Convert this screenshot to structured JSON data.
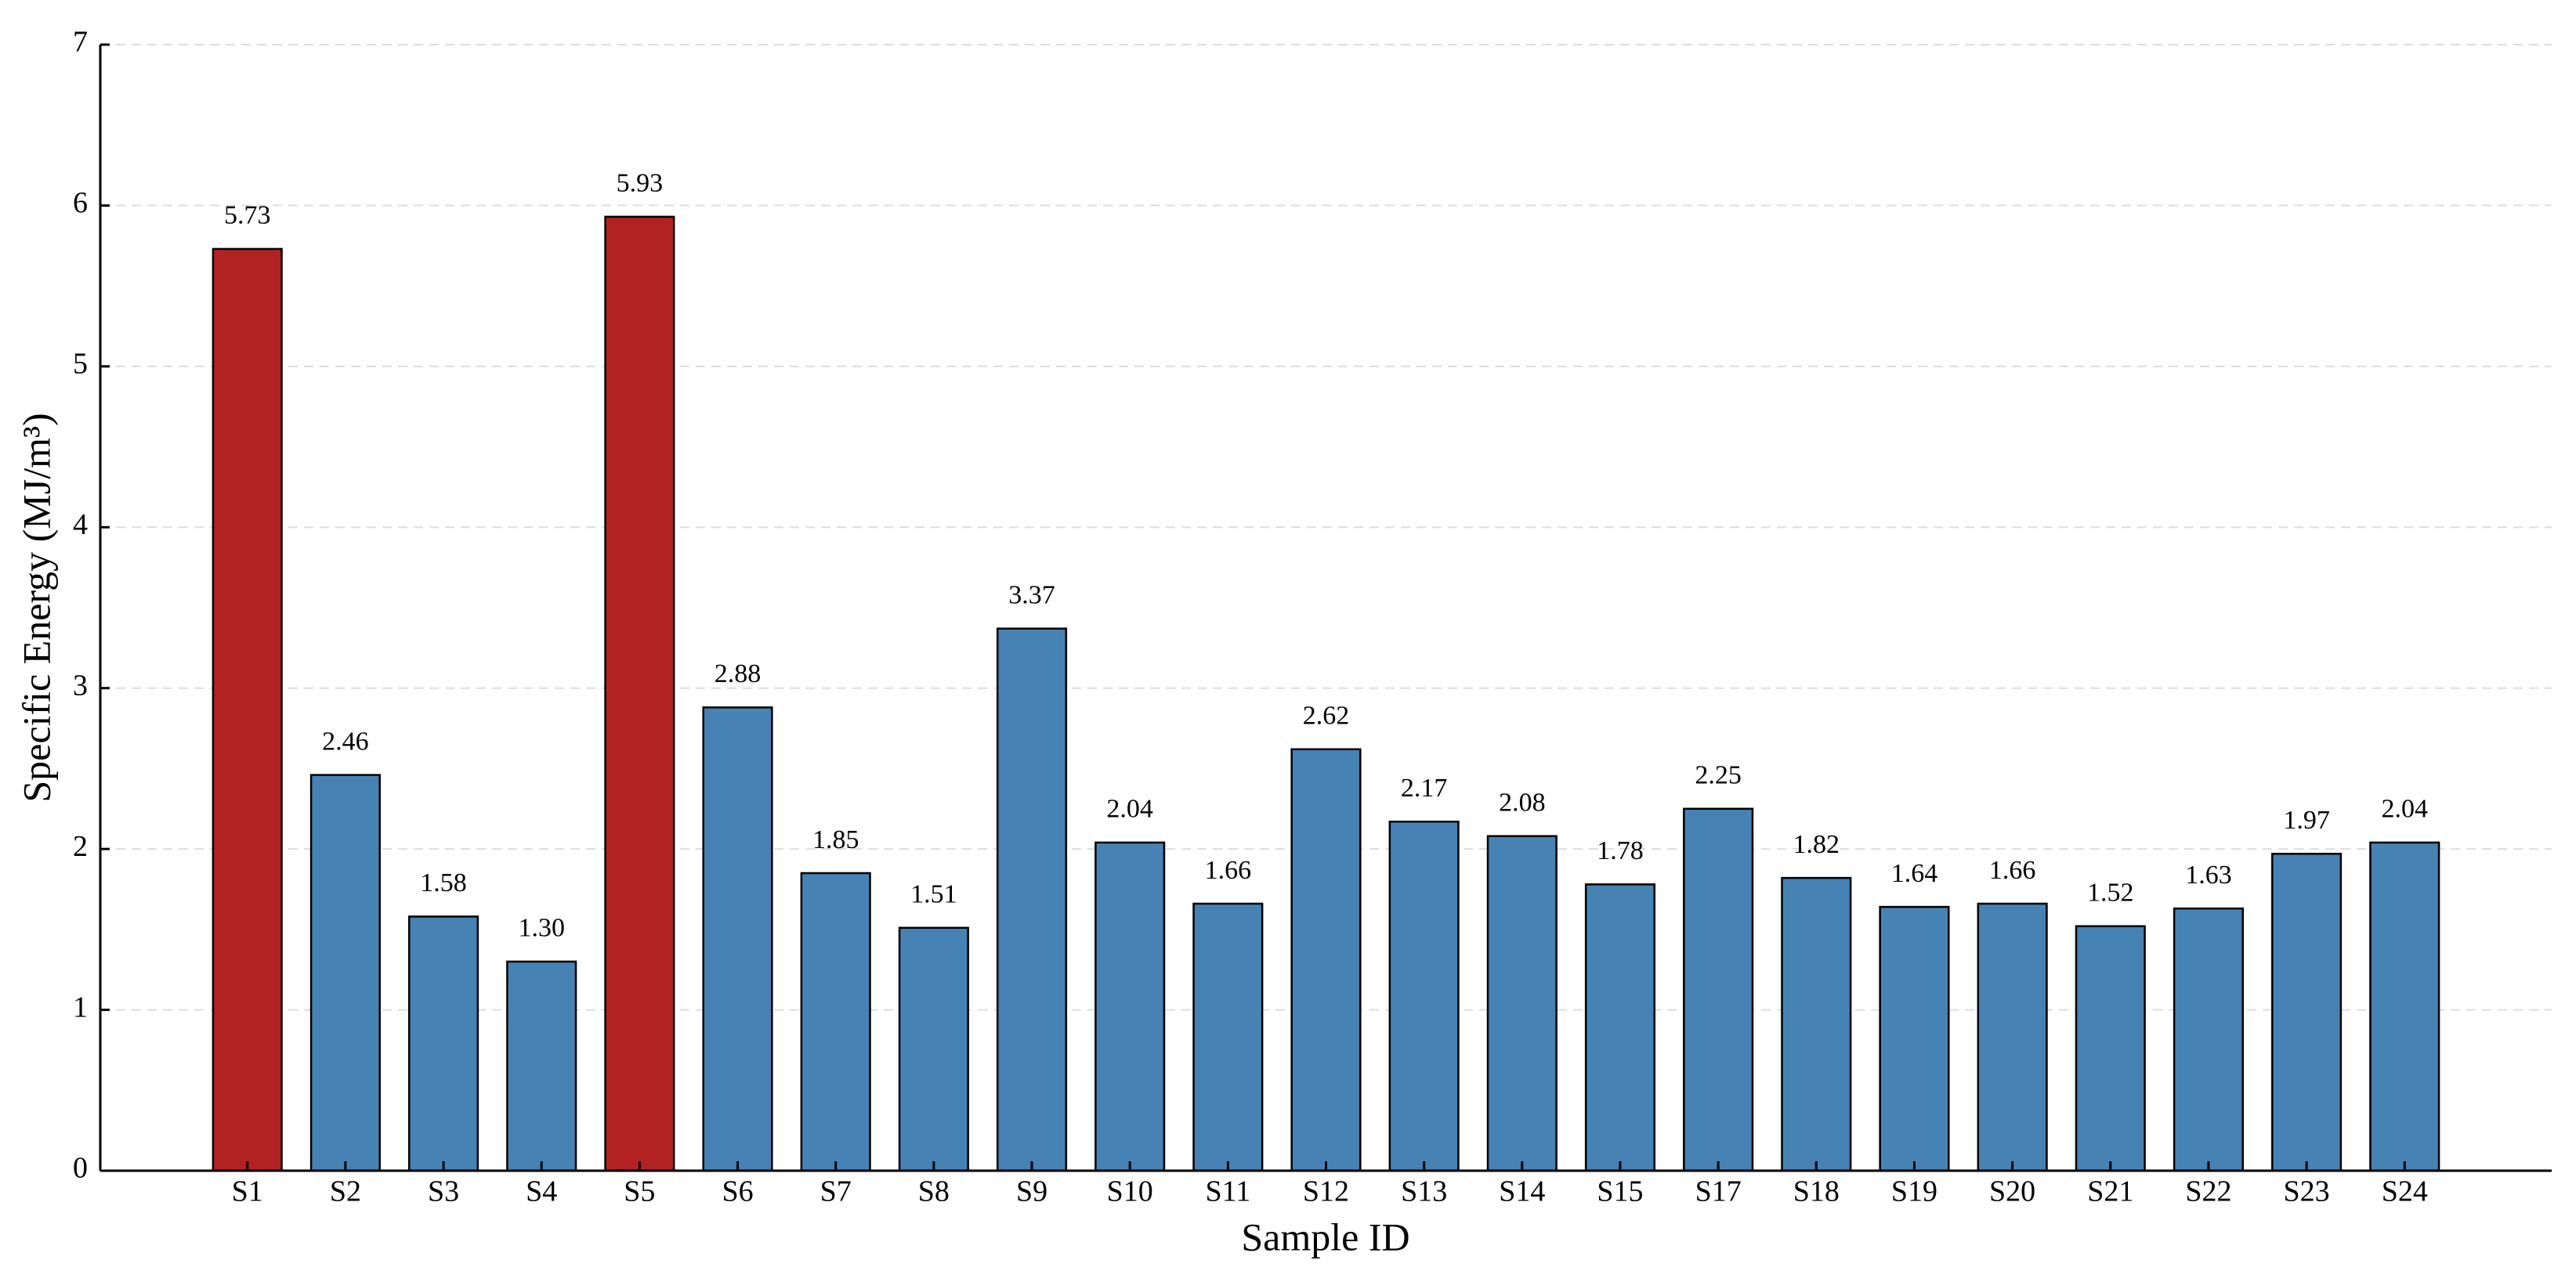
{
  "chart_data": {
    "type": "bar",
    "x_label": "Sample ID",
    "y_label": "Specific Energy (MJ/m³)",
    "categories": [
      "S1",
      "S2",
      "S3",
      "S4",
      "S5",
      "S6",
      "S7",
      "S8",
      "S9",
      "S10",
      "S11",
      "S12",
      "S13",
      "S14",
      "S15",
      "S17",
      "S18",
      "S19",
      "S20",
      "S21",
      "S22",
      "S23",
      "S24"
    ],
    "values": [
      5.73,
      2.46,
      1.58,
      1.3,
      5.93,
      2.88,
      1.85,
      1.51,
      3.37,
      2.04,
      1.66,
      2.62,
      2.17,
      2.08,
      1.78,
      2.25,
      1.82,
      1.64,
      1.66,
      1.52,
      1.63,
      1.97,
      2.04
    ],
    "value_labels": [
      "5.73",
      "2.46",
      "1.58",
      "1.30",
      "5.93",
      "2.88",
      "1.85",
      "1.51",
      "3.37",
      "2.04",
      "1.66",
      "2.62",
      "2.17",
      "2.08",
      "1.78",
      "2.25",
      "1.82",
      "1.64",
      "1.66",
      "1.52",
      "1.63",
      "1.97",
      "2.04"
    ],
    "colors": [
      "#b22222",
      "#4682b4",
      "#4682b4",
      "#4682b4",
      "#b22222",
      "#4682b4",
      "#4682b4",
      "#4682b4",
      "#4682b4",
      "#4682b4",
      "#4682b4",
      "#4682b4",
      "#4682b4",
      "#4682b4",
      "#4682b4",
      "#4682b4",
      "#4682b4",
      "#4682b4",
      "#4682b4",
      "#4682b4",
      "#4682b4",
      "#4682b4",
      "#4682b4"
    ],
    "ylim": [
      0,
      7
    ],
    "yticks": [
      0,
      1,
      2,
      3,
      4,
      5,
      6,
      7
    ],
    "grid": true
  }
}
